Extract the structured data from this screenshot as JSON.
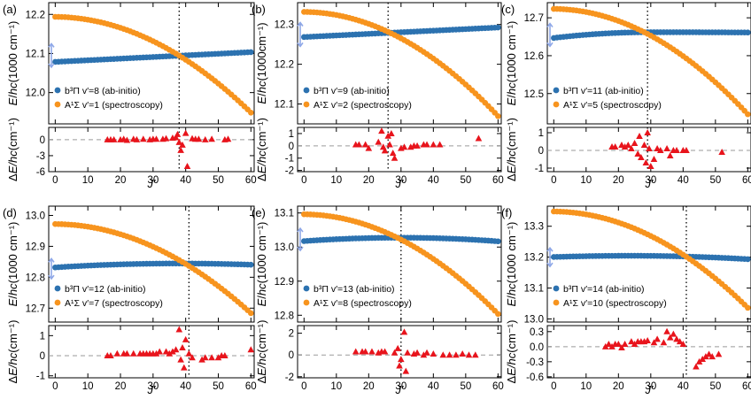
{
  "chart_data": [
    {
      "type": "scatter",
      "panel_label": "(a)",
      "x_crossing": 38,
      "upper": {
        "ylabel_pre": "E/",
        "ylabel_mid": "hc",
        "ylabel_unit": "(1000 cm⁻¹)",
        "ylim": [
          11.92,
          12.23
        ],
        "yticks": [
          12.0,
          12.1,
          12.2
        ],
        "ytick_labels": [
          "12.0",
          "12.1",
          "12.2"
        ],
        "arrow_range": [
          12.065,
          12.125
        ],
        "series": [
          {
            "name": "b³Π v′=8 (ab-initio)",
            "style": "blue",
            "start": 12.0785,
            "end": 12.1035,
            "shape": "linear",
            "step": 1
          },
          {
            "name": "A¹Σ v′=1 (spectroscopy)",
            "style": "orange",
            "start": 12.1938,
            "end": 11.9488,
            "shape": "quadratic",
            "step": 1
          }
        ],
        "legend_main": [
          "b³Π v′=8 (ab-initio)",
          "A¹Σ v′=1 (spectroscopy)"
        ]
      },
      "lower": {
        "ylabel_pre": "Δ",
        "ylabel_mid": "E/hc",
        "ylabel_unit": "(cm⁻¹)",
        "ylim": [
          -6,
          2.3
        ],
        "yticks": [
          -6,
          -3,
          0
        ],
        "ytick_labels": [
          "-6",
          "-3",
          "0"
        ],
        "points": [
          [
            16,
            0
          ],
          [
            17,
            0
          ],
          [
            18,
            0
          ],
          [
            20,
            0
          ],
          [
            21,
            0.1
          ],
          [
            22,
            -0.1
          ],
          [
            24,
            0.1
          ],
          [
            25,
            0
          ],
          [
            27,
            0.1
          ],
          [
            29,
            0
          ],
          [
            30,
            0.1
          ],
          [
            31,
            0.1
          ],
          [
            33,
            0.1
          ],
          [
            34,
            0.2
          ],
          [
            36,
            0.3
          ],
          [
            37,
            0.4
          ],
          [
            37.5,
            1
          ],
          [
            38,
            -0.5
          ],
          [
            38.5,
            -2
          ],
          [
            39,
            -1
          ],
          [
            40,
            1.2
          ],
          [
            40.5,
            -5
          ],
          [
            42,
            0.2
          ],
          [
            43,
            0.1
          ],
          [
            44,
            0.1
          ],
          [
            46,
            0
          ],
          [
            48,
            0.1
          ],
          [
            52,
            0
          ],
          [
            53,
            0.1
          ]
        ]
      },
      "xlim": [
        -2,
        61
      ],
      "xticks": [
        0,
        10,
        20,
        30,
        40,
        50,
        60
      ],
      "xlabel": "J′"
    },
    {
      "type": "scatter",
      "panel_label": "(b)",
      "x_crossing": 26,
      "upper": {
        "ylabel_pre": "E/",
        "ylabel_mid": "hc",
        "ylabel_unit": "(1000cm⁻¹)",
        "ylim": [
          12.05,
          12.355
        ],
        "yticks": [
          12.1,
          12.2,
          12.3
        ],
        "ytick_labels": [
          "12.1",
          "12.2",
          "12.3"
        ],
        "arrow_range": [
          12.245,
          12.305
        ],
        "series": [
          {
            "name": "b³Π v′=9 (ab-initio)",
            "style": "blue",
            "start": 12.2685,
            "end": 12.2925,
            "shape": "linear",
            "step": 1
          },
          {
            "name": "A¹Σ v′=2 (spectroscopy)",
            "style": "orange",
            "start": 12.3318,
            "end": 12.0695,
            "shape": "quadratic",
            "step": 1
          }
        ],
        "legend_main": [
          "b³Π v′=9 (ab-initio)",
          "A¹Σ v′=2 (spectroscopy)"
        ]
      },
      "lower": {
        "ylabel_pre": "Δ",
        "ylabel_mid": "E/hc",
        "ylabel_unit": "(cm⁻¹)",
        "ylim": [
          -2.1,
          1.5
        ],
        "yticks": [
          -2,
          -1,
          0,
          1
        ],
        "ytick_labels": [
          "-2",
          "-1",
          "0",
          "1"
        ],
        "points": [
          [
            16,
            0.1
          ],
          [
            17,
            0.1
          ],
          [
            19,
            0.1
          ],
          [
            20,
            -0.2
          ],
          [
            23,
            0.3
          ],
          [
            24,
            1.2
          ],
          [
            24.5,
            -0.1
          ],
          [
            25,
            -0.4
          ],
          [
            26,
            0.8
          ],
          [
            26.5,
            0.1
          ],
          [
            27,
            1
          ],
          [
            27.5,
            -0.6
          ],
          [
            28,
            -1
          ],
          [
            30,
            -0.2
          ],
          [
            31,
            -0.1
          ],
          [
            33,
            -0.1
          ],
          [
            34,
            0
          ],
          [
            35,
            0
          ],
          [
            37,
            0.1
          ],
          [
            38,
            0.1
          ],
          [
            40,
            0.1
          ],
          [
            42,
            0.1
          ],
          [
            54,
            0.6
          ]
        ]
      },
      "xlim": [
        -2,
        61
      ],
      "xticks": [
        0,
        10,
        20,
        30,
        40,
        50,
        60
      ],
      "xlabel": "J′"
    },
    {
      "type": "scatter",
      "panel_label": "(c)",
      "x_crossing": 29,
      "upper": {
        "ylabel_pre": "E/",
        "ylabel_mid": "hc",
        "ylabel_unit": "(1000 cm⁻¹)",
        "ylim": [
          12.42,
          12.74
        ],
        "yticks": [
          12.5,
          12.6,
          12.7
        ],
        "ytick_labels": [
          "12.5",
          "12.6",
          "12.7"
        ],
        "arrow_range": [
          12.625,
          12.685
        ],
        "series": [
          {
            "name": "b³Π v′=11 (ab-initio)",
            "style": "blue",
            "start": 12.6468,
            "end": 12.6612,
            "shape": "quadratic-peak",
            "peak": 30,
            "peakval": 12.662,
            "step": 1
          },
          {
            "name": "A¹Σ v′=5 (spectroscopy)",
            "style": "orange",
            "start": 12.7236,
            "end": 12.4454,
            "shape": "quadratic",
            "step": 1
          }
        ],
        "legend_main": [
          "b³Π v′=11 (ab-initio)",
          "A¹Σ v′=5 (spectroscopy)"
        ]
      },
      "lower": {
        "ylabel_pre": "Δ",
        "ylabel_mid": "E/hc",
        "ylabel_unit": "(cm⁻¹)",
        "ylim": [
          -1.2,
          1.3
        ],
        "yticks": [
          -1,
          0,
          1
        ],
        "ytick_labels": [
          "-1",
          "0",
          "1"
        ],
        "points": [
          [
            18,
            0.2
          ],
          [
            19,
            0.2
          ],
          [
            21,
            0.3
          ],
          [
            22,
            0.2
          ],
          [
            23,
            0.3
          ],
          [
            24,
            0.1
          ],
          [
            25,
            0.4
          ],
          [
            26,
            -0.2
          ],
          [
            26.5,
            0.8
          ],
          [
            27,
            -0.4
          ],
          [
            28,
            0.3
          ],
          [
            28.5,
            -0.7
          ],
          [
            29,
            1
          ],
          [
            29.5,
            0.1
          ],
          [
            30,
            -0.9
          ],
          [
            31,
            -0.5
          ],
          [
            32,
            0.1
          ],
          [
            33,
            0
          ],
          [
            35,
            0.1
          ],
          [
            36,
            -0.3
          ],
          [
            37,
            0
          ],
          [
            38,
            0
          ],
          [
            40,
            0
          ],
          [
            41,
            0
          ],
          [
            52,
            -0.1
          ]
        ]
      },
      "xlim": [
        -2,
        61
      ],
      "xticks": [
        0,
        10,
        20,
        30,
        40,
        50,
        60
      ],
      "xlabel": "J′"
    },
    {
      "type": "scatter",
      "panel_label": "(d)",
      "x_crossing": 41,
      "upper": {
        "ylabel_pre": "E/",
        "ylabel_mid": "hc",
        "ylabel_unit": "(1000 cm⁻¹)",
        "ylim": [
          12.655,
          13.03
        ],
        "yticks": [
          12.7,
          12.8,
          12.9,
          13.0
        ],
        "ytick_labels": [
          "12.7",
          "12.8",
          "12.9",
          "13.0"
        ],
        "arrow_range": [
          12.795,
          12.86
        ],
        "series": [
          {
            "name": "b³Π v′=12 (ab-initio)",
            "style": "blue",
            "start": 12.8318,
            "end": 12.8405,
            "shape": "quadratic-peak",
            "peak": 38,
            "peakval": 12.8445,
            "step": 1
          },
          {
            "name": "A¹Σ v′=7 (spectroscopy)",
            "style": "orange",
            "start": 12.9722,
            "end": 12.6838,
            "shape": "quadratic",
            "step": 1
          }
        ],
        "legend_main": [
          "b³Π v′=12 (ab-initio)",
          "A¹Σ v′=7 (spectroscopy)"
        ]
      },
      "lower": {
        "ylabel_pre": "Δ",
        "ylabel_mid": "E/hc",
        "ylabel_unit": "(cm⁻¹)",
        "ylim": [
          -1.1,
          1.5
        ],
        "yticks": [
          -1,
          0,
          1
        ],
        "ytick_labels": [
          "-1",
          "0",
          "1"
        ],
        "points": [
          [
            16,
            0
          ],
          [
            17,
            0
          ],
          [
            19,
            0.1
          ],
          [
            21,
            0.1
          ],
          [
            22,
            0.1
          ],
          [
            24,
            0.1
          ],
          [
            26,
            0.1
          ],
          [
            27,
            0.1
          ],
          [
            28,
            0.1
          ],
          [
            29,
            0.1
          ],
          [
            30,
            0.1
          ],
          [
            31,
            0.1
          ],
          [
            32,
            0.2
          ],
          [
            34,
            0.2
          ],
          [
            35,
            0.1
          ],
          [
            36,
            0.2
          ],
          [
            37,
            0.3
          ],
          [
            38,
            1.3
          ],
          [
            38.5,
            -0.2
          ],
          [
            39,
            0.4
          ],
          [
            39.5,
            -0.6
          ],
          [
            40,
            0.8
          ],
          [
            41,
            0.1
          ],
          [
            42,
            -0.1
          ],
          [
            45,
            -0.2
          ],
          [
            46,
            -0.1
          ],
          [
            48,
            -0.1
          ],
          [
            50,
            -0.1
          ],
          [
            51,
            0
          ],
          [
            52,
            0
          ],
          [
            60,
            0.3
          ]
        ]
      },
      "xlim": [
        -2,
        61
      ],
      "xticks": [
        0,
        10,
        20,
        30,
        40,
        50,
        60
      ],
      "xlabel": "J′"
    },
    {
      "type": "scatter",
      "panel_label": "(e)",
      "x_crossing": 30,
      "upper": {
        "ylabel_pre": "E/",
        "ylabel_mid": "hc",
        "ylabel_unit": "(1000 cm⁻¹)",
        "ylim": [
          12.78,
          13.12
        ],
        "yticks": [
          12.8,
          12.9,
          13.0,
          13.1
        ],
        "ytick_labels": [
          "12.8",
          "12.9",
          "13.0",
          "13.1"
        ],
        "arrow_range": [
          12.99,
          13.055
        ],
        "series": [
          {
            "name": "b³Π v′=13 (ab-initio)",
            "style": "blue",
            "start": 13.0175,
            "end": 13.0168,
            "shape": "quadratic-peak",
            "peak": 30,
            "peakval": 13.0275,
            "step": 1
          },
          {
            "name": "A¹Σ v′=8 (spectroscopy)",
            "style": "orange",
            "start": 13.0962,
            "end": 12.8038,
            "shape": "quadratic",
            "step": 1
          }
        ],
        "legend_main": [
          "b³Π v′=13 (ab-initio)",
          "A¹Σ v′=8 (spectroscopy)"
        ]
      },
      "lower": {
        "ylabel_pre": "Δ",
        "ylabel_mid": "E/hc",
        "ylabel_unit": "(cm⁻¹)",
        "ylim": [
          -2.1,
          2.7
        ],
        "yticks": [
          -2,
          0,
          2
        ],
        "ytick_labels": [
          "-2",
          "0",
          "2"
        ],
        "points": [
          [
            16,
            0.3
          ],
          [
            18,
            0.3
          ],
          [
            19,
            0.3
          ],
          [
            21,
            0.3
          ],
          [
            23,
            0.2
          ],
          [
            24,
            0.3
          ],
          [
            25,
            0.3
          ],
          [
            28,
            0.2
          ],
          [
            29,
            0.6
          ],
          [
            29.5,
            -1
          ],
          [
            30,
            -0.4
          ],
          [
            31,
            2.1
          ],
          [
            31.5,
            -1.5
          ],
          [
            32,
            0.2
          ],
          [
            34,
            0.1
          ],
          [
            35,
            0.2
          ],
          [
            37,
            0
          ],
          [
            38,
            0.2
          ],
          [
            40,
            0.1
          ],
          [
            43,
            0
          ],
          [
            45,
            0
          ],
          [
            47,
            0
          ],
          [
            49,
            0.1
          ],
          [
            51,
            0
          ],
          [
            53,
            0
          ]
        ]
      },
      "xlim": [
        -2,
        61
      ],
      "xticks": [
        0,
        10,
        20,
        30,
        40,
        50,
        60
      ],
      "xlabel": "J′"
    },
    {
      "type": "scatter",
      "panel_label": "(f)",
      "x_crossing": 41,
      "upper": {
        "ylabel_pre": "E/",
        "ylabel_mid": "hc",
        "ylabel_unit": "(1000 cm⁻¹)",
        "ylim": [
          12.99,
          13.365
        ],
        "yticks": [
          13.0,
          13.1,
          13.2,
          13.3
        ],
        "ytick_labels": [
          "13.0",
          "13.1",
          "13.2",
          "13.3"
        ],
        "arrow_range": [
          13.17,
          13.23
        ],
        "series": [
          {
            "name": "b³Π v′=14 (ab-initio)",
            "style": "blue",
            "start": 13.2005,
            "end": 13.1935,
            "shape": "quadratic-peak",
            "peak": 24,
            "peakval": 13.2045,
            "step": 1
          },
          {
            "name": "A¹Σ v′=10 (spectroscopy)",
            "style": "orange",
            "start": 13.3478,
            "end": 13.0362,
            "shape": "quadratic",
            "step": 1
          }
        ],
        "legend_main": [
          "b³Π v′=14 (ab-initio)",
          "A¹Σ v′=10 (spectroscopy)"
        ]
      },
      "lower": {
        "ylabel_pre": "Δ",
        "ylabel_mid": "E/hc",
        "ylabel_unit": "(cm⁻¹)",
        "ylim": [
          -0.62,
          0.42
        ],
        "yticks": [
          -0.6,
          -0.3,
          0.0,
          0.3
        ],
        "ytick_labels": [
          "-0.6",
          "-0.3",
          "0.0",
          "0.3"
        ],
        "points": [
          [
            16,
            0
          ],
          [
            17,
            0.05
          ],
          [
            18,
            0
          ],
          [
            19,
            0.05
          ],
          [
            20,
            0.05
          ],
          [
            21,
            -0.02
          ],
          [
            22,
            0.05
          ],
          [
            24,
            0.1
          ],
          [
            25,
            0.05
          ],
          [
            26,
            0.1
          ],
          [
            27,
            0.1
          ],
          [
            28,
            0.1
          ],
          [
            29,
            0.12
          ],
          [
            31,
            0.08
          ],
          [
            32,
            0.15
          ],
          [
            34,
            0.08
          ],
          [
            35,
            0.3
          ],
          [
            36,
            0.18
          ],
          [
            37,
            0.25
          ],
          [
            38,
            0.15
          ],
          [
            39,
            0.1
          ],
          [
            40,
            0.05
          ],
          [
            44,
            -0.4
          ],
          [
            45,
            -0.3
          ],
          [
            46,
            -0.25
          ],
          [
            47,
            -0.2
          ],
          [
            48,
            -0.15
          ],
          [
            49,
            -0.2
          ],
          [
            51,
            -0.15
          ]
        ]
      },
      "xlim": [
        -2,
        61
      ],
      "xticks": [
        0,
        10,
        20,
        30,
        40,
        50,
        60
      ],
      "xlabel": "J′"
    }
  ]
}
